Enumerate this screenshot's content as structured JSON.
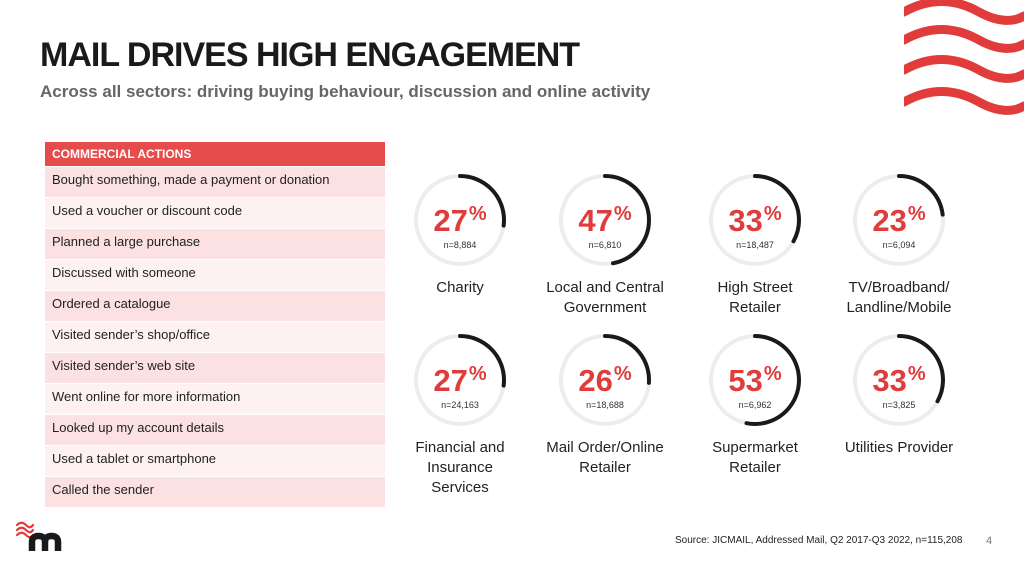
{
  "header": {
    "title": "MAIL DRIVES HIGH ENGAGEMENT",
    "subtitle": "Across all sectors: driving buying behaviour, discussion and online activity"
  },
  "actions": {
    "heading": "COMMERCIAL ACTIONS",
    "items": [
      "Bought something, made a payment or donation",
      "Used a voucher or discount code",
      "Planned a large purchase",
      "Discussed with someone",
      "Ordered a catalogue",
      "Visited sender’s shop/office",
      "Visited sender’s web site",
      "Went online for more information",
      "Looked up my account details",
      "Used a tablet or smartphone",
      "Called the sender"
    ]
  },
  "sectors": [
    {
      "value": "27",
      "percent_sign": "%",
      "n": "n=8,884",
      "label_lines": [
        "Charity"
      ]
    },
    {
      "value": "47",
      "percent_sign": "%",
      "n": "n=6,810",
      "label_lines": [
        "Local and Central",
        "Government"
      ]
    },
    {
      "value": "33",
      "percent_sign": "%",
      "n": "n=18,487",
      "label_lines": [
        "High Street",
        "Retailer"
      ]
    },
    {
      "value": "23",
      "percent_sign": "%",
      "n": "n=6,094",
      "label_lines": [
        "TV/Broadband/",
        "Landline/Mobile"
      ]
    },
    {
      "value": "27",
      "percent_sign": "%",
      "n": "n=24,163",
      "label_lines": [
        "Financial and",
        "Insurance",
        "Services"
      ]
    },
    {
      "value": "26",
      "percent_sign": "%",
      "n": "n=18,688",
      "label_lines": [
        "Mail Order/Online",
        "Retailer"
      ]
    },
    {
      "value": "53",
      "percent_sign": "%",
      "n": "n=6,962",
      "label_lines": [
        "Supermarket",
        "Retailer"
      ]
    },
    {
      "value": "33",
      "percent_sign": "%",
      "n": "n=3,825",
      "label_lines": [
        "Utilities Provider"
      ]
    }
  ],
  "footer": {
    "source": "Source:  JICMAIL, Addressed Mail, Q2 2017-Q3 2022, n=115,208",
    "page_number": "4"
  },
  "colors": {
    "accent": "#e23b3b",
    "table_header": "#e74c4c",
    "ring_track": "#ededed",
    "ring_fill": "#1a1a1a",
    "logo_dark": "#1a1a1a"
  }
}
